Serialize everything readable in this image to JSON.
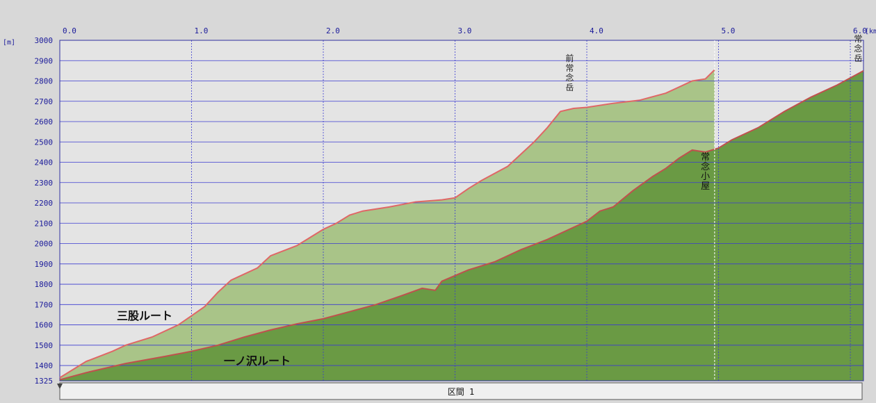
{
  "chart_data": {
    "type": "area",
    "x_unit": "[km]",
    "y_unit": "[m]",
    "xlim": [
      0,
      6.1
    ],
    "ylim": [
      1325,
      3000
    ],
    "x_ticks": [
      0,
      1,
      2,
      3,
      4,
      5,
      6
    ],
    "x_tick_labels": [
      "0.0",
      "1.0",
      "2.0",
      "3.0",
      "4.0",
      "5.0",
      "6.0"
    ],
    "y_ticks": [
      1325,
      1400,
      1500,
      1600,
      1700,
      1800,
      1900,
      2000,
      2100,
      2200,
      2300,
      2400,
      2500,
      2600,
      2700,
      2800,
      2900,
      3000
    ],
    "grid": true,
    "series": [
      {
        "name": "三股ルート",
        "fill": "#a9c488",
        "line": "#e06666",
        "x": [
          0,
          0.05,
          0.2,
          0.4,
          0.5,
          0.7,
          0.9,
          1.0,
          1.1,
          1.2,
          1.3,
          1.5,
          1.6,
          1.8,
          1.9,
          2.0,
          2.1,
          2.2,
          2.3,
          2.5,
          2.7,
          2.9,
          3.0,
          3.1,
          3.2,
          3.4,
          3.6,
          3.7,
          3.8,
          3.9,
          4.0,
          4.2,
          4.4,
          4.6,
          4.8,
          4.9,
          4.97
        ],
        "y": [
          1340,
          1360,
          1420,
          1470,
          1500,
          1540,
          1600,
          1645,
          1690,
          1760,
          1820,
          1880,
          1940,
          1990,
          2030,
          2070,
          2100,
          2140,
          2160,
          2180,
          2205,
          2215,
          2225,
          2270,
          2310,
          2380,
          2500,
          2570,
          2650,
          2665,
          2670,
          2690,
          2705,
          2740,
          2800,
          2810,
          2855
        ]
      },
      {
        "name": "一ノ沢ルート",
        "fill": "#6a9a44",
        "line": "#c0504d",
        "x": [
          0,
          0.2,
          0.5,
          0.8,
          1.0,
          1.2,
          1.4,
          1.6,
          1.8,
          2.0,
          2.2,
          2.4,
          2.6,
          2.75,
          2.85,
          2.9,
          3.1,
          3.3,
          3.5,
          3.7,
          3.9,
          4.0,
          4.1,
          4.2,
          4.35,
          4.5,
          4.6,
          4.7,
          4.8,
          4.9,
          5.0,
          5.1,
          5.3,
          5.5,
          5.7,
          5.9,
          6.1
        ],
        "y": [
          1330,
          1365,
          1410,
          1445,
          1470,
          1500,
          1540,
          1575,
          1605,
          1630,
          1665,
          1700,
          1745,
          1780,
          1770,
          1815,
          1870,
          1910,
          1970,
          2020,
          2080,
          2110,
          2160,
          2180,
          2260,
          2330,
          2370,
          2420,
          2460,
          2450,
          2470,
          2510,
          2570,
          2650,
          2720,
          2780,
          2850
        ]
      }
    ],
    "annotations": [
      {
        "text": "前常念岳",
        "x": 3.87
      },
      {
        "text": "常念小屋",
        "x": 4.9
      },
      {
        "text": "常念岳",
        "x": 6.06
      }
    ],
    "segment_label": "区間 1"
  }
}
